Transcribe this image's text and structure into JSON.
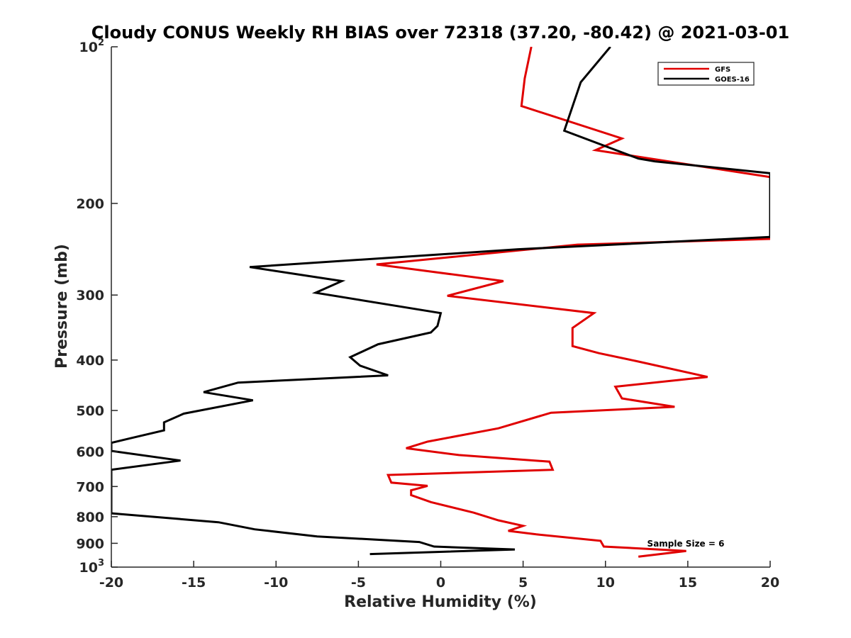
{
  "chart_data": {
    "type": "line",
    "title": "Cloudy CONUS Weekly RH BIAS over 72318 (37.20, -80.42) @ 2021-03-01",
    "xlabel": "Relative Humidity (%)",
    "ylabel": "Pressure (mb)",
    "xlim": [
      -20,
      20
    ],
    "ylim": [
      100,
      1000
    ],
    "y_scale": "log",
    "y_reversed": true,
    "grid": false,
    "legend_position": "top-right",
    "x_ticks": [
      "-20",
      "-15",
      "-10",
      "-5",
      "0",
      "5",
      "10",
      "15",
      "20"
    ],
    "y_ticks": [
      {
        "value": 100,
        "label": "10",
        "exp": "2"
      },
      {
        "value": 200,
        "label": "200",
        "exp": ""
      },
      {
        "value": 300,
        "label": "300",
        "exp": ""
      },
      {
        "value": 400,
        "label": "400",
        "exp": ""
      },
      {
        "value": 500,
        "label": "500",
        "exp": ""
      },
      {
        "value": 600,
        "label": "600",
        "exp": ""
      },
      {
        "value": 700,
        "label": "700",
        "exp": ""
      },
      {
        "value": 800,
        "label": "800",
        "exp": ""
      },
      {
        "value": 900,
        "label": "900",
        "exp": ""
      },
      {
        "value": 1000,
        "label": "10",
        "exp": "3"
      }
    ],
    "annotation": "Sample Size = 6",
    "series": [
      {
        "name": "GFS",
        "color": "#e00000",
        "points": [
          [
            5.5,
            100
          ],
          [
            5.1,
            115
          ],
          [
            4.9,
            130
          ],
          [
            11,
            150
          ],
          [
            9.4,
            158
          ],
          [
            20,
            178
          ],
          [
            20,
            234
          ],
          [
            8.3,
            240
          ],
          [
            -3.9,
            262
          ],
          [
            3.8,
            282
          ],
          [
            0.4,
            301
          ],
          [
            9.3,
            325
          ],
          [
            8.0,
            347
          ],
          [
            8.0,
            376
          ],
          [
            9.6,
            388
          ],
          [
            11.9,
            402
          ],
          [
            16.2,
            431
          ],
          [
            10.6,
            450
          ],
          [
            11.0,
            474
          ],
          [
            14.2,
            492
          ],
          [
            6.7,
            505
          ],
          [
            3.5,
            541
          ],
          [
            -0.8,
            574
          ],
          [
            -2.1,
            591
          ],
          [
            1.1,
            609
          ],
          [
            6.6,
            627
          ],
          [
            6.8,
            650
          ],
          [
            -3.2,
            665
          ],
          [
            -3.0,
            688
          ],
          [
            -0.8,
            698
          ],
          [
            -1.8,
            712
          ],
          [
            -1.8,
            727
          ],
          [
            -0.6,
            750
          ],
          [
            2.0,
            786
          ],
          [
            3.5,
            813
          ],
          [
            5.0,
            833
          ],
          [
            4.1,
            852
          ],
          [
            5.8,
            865
          ],
          [
            9.7,
            890
          ],
          [
            9.9,
            913
          ],
          [
            14.9,
            931
          ],
          [
            12.0,
            955
          ]
        ]
      },
      {
        "name": "GOES-16",
        "color": "#000000",
        "points": [
          [
            10.3,
            100
          ],
          [
            8.5,
            117
          ],
          [
            7.5,
            145
          ],
          [
            12.0,
            164
          ],
          [
            13.0,
            166
          ],
          [
            20,
            175
          ],
          [
            20,
            232
          ],
          [
            4.7,
            245
          ],
          [
            -11.6,
            265
          ],
          [
            -6.0,
            282
          ],
          [
            -7.6,
            297
          ],
          [
            0.0,
            325
          ],
          [
            -0.2,
            344
          ],
          [
            -0.6,
            354
          ],
          [
            -3.8,
            373
          ],
          [
            -5.5,
            395
          ],
          [
            -4.9,
            410
          ],
          [
            -3.2,
            428
          ],
          [
            -12.3,
            442
          ],
          [
            -14.4,
            461
          ],
          [
            -11.4,
            478
          ],
          [
            -15.6,
            507
          ],
          [
            -16.8,
            527
          ],
          [
            -16.8,
            546
          ],
          [
            -18.9,
            566
          ],
          [
            -20,
            577
          ],
          [
            -20,
            598
          ],
          [
            -15.8,
            624
          ],
          [
            -20,
            650
          ],
          [
            -20,
            788
          ],
          [
            -13.5,
            820
          ],
          [
            -11.3,
            846
          ],
          [
            -7.5,
            873
          ],
          [
            -1.3,
            895
          ],
          [
            -0.4,
            913
          ],
          [
            4.5,
            925
          ],
          [
            -4.3,
            944
          ]
        ]
      }
    ]
  }
}
